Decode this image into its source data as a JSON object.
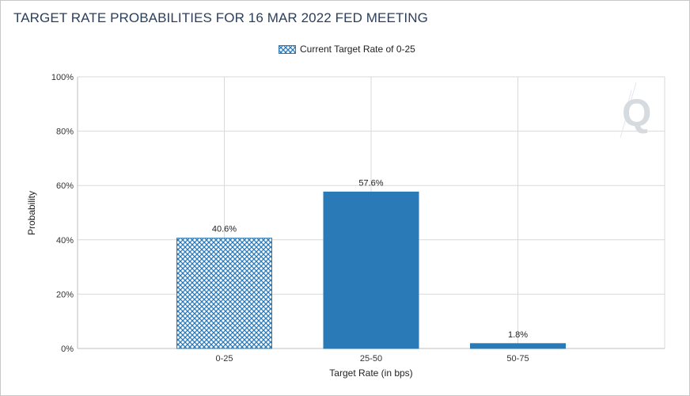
{
  "chart_data": {
    "type": "bar",
    "title": "TARGET RATE PROBABILITIES FOR 16 MAR 2022 FED MEETING",
    "legend": {
      "label": "Current Target Rate of 0-25",
      "placement": "top-center"
    },
    "categories": [
      "0-25",
      "25-50",
      "50-75"
    ],
    "values": [
      40.6,
      57.6,
      1.8
    ],
    "value_labels": [
      "40.6%",
      "57.6%",
      "1.8%"
    ],
    "current_target_index": 0,
    "xlabel": "Target Rate (in bps)",
    "ylabel": "Probability",
    "ylim": [
      0,
      100
    ],
    "yticks": [
      0,
      20,
      40,
      60,
      80,
      100
    ],
    "ytick_labels": [
      "0%",
      "20%",
      "40%",
      "60%",
      "80%",
      "100%"
    ],
    "grid": true
  },
  "colors": {
    "bar": "#2a7ab7",
    "hatch_line": "#2a7ab7",
    "hatch_bg": "#ffffff",
    "grid": "#d9d9d9",
    "axis": "#bfbfbf",
    "title": "#2b3f5c",
    "watermark": "#d6dbe0"
  },
  "watermark": {
    "letter": "Q"
  }
}
